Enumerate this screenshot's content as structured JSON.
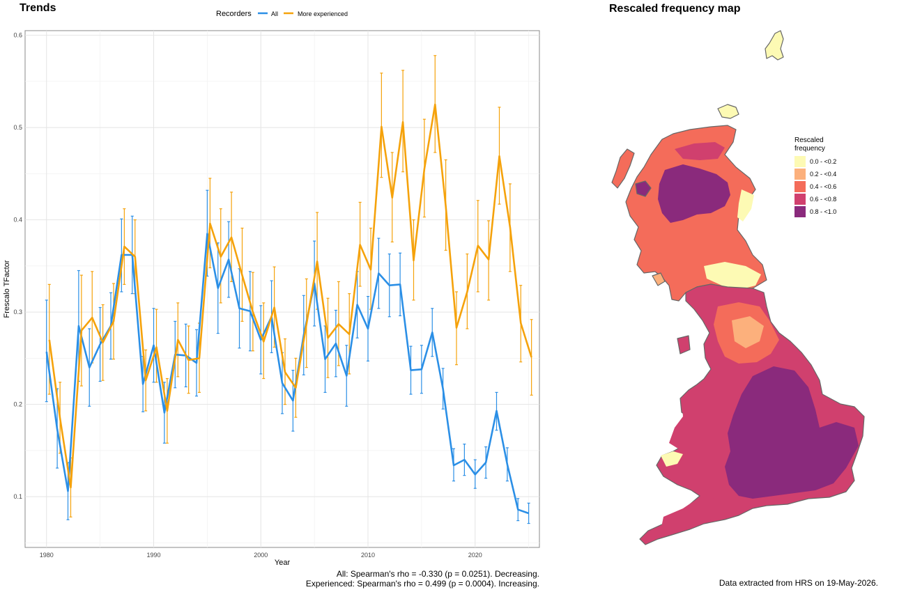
{
  "trends": {
    "title": "Trends",
    "legend_title": "Recorders",
    "stats_all": "All: Spearman's rho = -0.330 (p = 0.0251). Decreasing.",
    "stats_experienced": "Experienced: Spearman's rho = 0.499 (p = 0.0004). Increasing."
  },
  "chart_data": {
    "type": "line",
    "title": "Trends",
    "xlabel": "Year",
    "ylabel": "Frescalo TFactor",
    "xlim": [
      1978,
      2026
    ],
    "ylim": [
      0.045,
      0.605
    ],
    "x_ticks": [
      1980,
      1990,
      2000,
      2010,
      2020
    ],
    "y_ticks": [
      0.1,
      0.2,
      0.3,
      0.4,
      0.5,
      0.6
    ],
    "grid": true,
    "legend_position": "top",
    "series": [
      {
        "name": "All",
        "color": "#2b8fe6",
        "x": [
          1980,
          1981,
          1982,
          1983,
          1984,
          1985,
          1986,
          1987,
          1988,
          1989,
          1990,
          1991,
          1992,
          1993,
          1994,
          1995,
          1996,
          1997,
          1998,
          1999,
          2000,
          2001,
          2002,
          2003,
          2004,
          2005,
          2006,
          2007,
          2008,
          2009,
          2010,
          2011,
          2012,
          2013,
          2014,
          2015,
          2016,
          2017,
          2018,
          2019,
          2020,
          2021,
          2022,
          2023,
          2024,
          2025
        ],
        "y": [
          0.257,
          0.173,
          0.106,
          0.285,
          0.24,
          0.265,
          0.285,
          0.362,
          0.362,
          0.222,
          0.264,
          0.191,
          0.254,
          0.253,
          0.245,
          0.385,
          0.326,
          0.357,
          0.304,
          0.301,
          0.27,
          0.295,
          0.223,
          0.204,
          0.275,
          0.331,
          0.249,
          0.266,
          0.231,
          0.308,
          0.282,
          0.342,
          0.329,
          0.33,
          0.237,
          0.238,
          0.278,
          0.217,
          0.134,
          0.14,
          0.124,
          0.137,
          0.193,
          0.135,
          0.086,
          0.082
        ],
        "lower": [
          0.203,
          0.131,
          0.075,
          0.225,
          0.198,
          0.225,
          0.249,
          0.322,
          0.32,
          0.192,
          0.224,
          0.158,
          0.218,
          0.219,
          0.209,
          0.339,
          0.277,
          0.316,
          0.261,
          0.258,
          0.233,
          0.256,
          0.19,
          0.171,
          0.232,
          0.285,
          0.213,
          0.23,
          0.198,
          0.272,
          0.247,
          0.304,
          0.295,
          0.296,
          0.211,
          0.212,
          0.252,
          0.195,
          0.117,
          0.123,
          0.109,
          0.12,
          0.172,
          0.117,
          0.074,
          0.071
        ],
        "upper": [
          0.313,
          0.217,
          0.137,
          0.345,
          0.282,
          0.305,
          0.321,
          0.401,
          0.404,
          0.252,
          0.304,
          0.224,
          0.29,
          0.287,
          0.281,
          0.432,
          0.375,
          0.398,
          0.347,
          0.344,
          0.307,
          0.334,
          0.256,
          0.237,
          0.318,
          0.377,
          0.285,
          0.302,
          0.264,
          0.344,
          0.317,
          0.38,
          0.363,
          0.364,
          0.263,
          0.264,
          0.304,
          0.239,
          0.152,
          0.157,
          0.14,
          0.154,
          0.213,
          0.153,
          0.098,
          0.093
        ]
      },
      {
        "name": "More experienced",
        "color": "#f5a20b",
        "x": [
          1980,
          1981,
          1982,
          1983,
          1984,
          1985,
          1986,
          1987,
          1988,
          1989,
          1990,
          1991,
          1992,
          1993,
          1994,
          1995,
          1996,
          1997,
          1998,
          1999,
          2000,
          2001,
          2002,
          2003,
          2004,
          2005,
          2006,
          2007,
          2008,
          2009,
          2010,
          2011,
          2012,
          2013,
          2014,
          2015,
          2016,
          2017,
          2018,
          2019,
          2020,
          2021,
          2022,
          2023,
          2024,
          2025
        ],
        "y": [
          0.27,
          0.185,
          0.11,
          0.28,
          0.294,
          0.267,
          0.29,
          0.371,
          0.36,
          0.226,
          0.262,
          0.193,
          0.27,
          0.248,
          0.25,
          0.396,
          0.36,
          0.381,
          0.34,
          0.3,
          0.268,
          0.305,
          0.235,
          0.218,
          0.287,
          0.355,
          0.272,
          0.287,
          0.276,
          0.373,
          0.346,
          0.501,
          0.424,
          0.506,
          0.356,
          0.455,
          0.525,
          0.415,
          0.283,
          0.322,
          0.372,
          0.357,
          0.469,
          0.392,
          0.288,
          0.251
        ],
        "lower": [
          0.211,
          0.147,
          0.078,
          0.22,
          0.245,
          0.226,
          0.249,
          0.33,
          0.32,
          0.193,
          0.224,
          0.158,
          0.23,
          0.212,
          0.213,
          0.348,
          0.31,
          0.333,
          0.29,
          0.258,
          0.228,
          0.262,
          0.2,
          0.186,
          0.24,
          0.303,
          0.229,
          0.242,
          0.233,
          0.328,
          0.303,
          0.446,
          0.376,
          0.452,
          0.313,
          0.403,
          0.473,
          0.367,
          0.243,
          0.282,
          0.322,
          0.313,
          0.417,
          0.344,
          0.246,
          0.21
        ],
        "upper": [
          0.33,
          0.224,
          0.142,
          0.34,
          0.344,
          0.308,
          0.331,
          0.412,
          0.4,
          0.259,
          0.303,
          0.228,
          0.31,
          0.285,
          0.288,
          0.445,
          0.412,
          0.43,
          0.391,
          0.343,
          0.31,
          0.349,
          0.271,
          0.25,
          0.336,
          0.408,
          0.315,
          0.333,
          0.32,
          0.419,
          0.391,
          0.559,
          0.473,
          0.562,
          0.4,
          0.509,
          0.578,
          0.465,
          0.322,
          0.363,
          0.421,
          0.399,
          0.522,
          0.439,
          0.329,
          0.292
        ]
      }
    ]
  },
  "map": {
    "title": "Rescaled frequency map",
    "legend_title_line1": "Rescaled",
    "legend_title_line2": "frequency",
    "legend": [
      {
        "label": "0.0 - <0.2",
        "color": "#fdfab4"
      },
      {
        "label": "0.2 - <0.4",
        "color": "#fcb07c"
      },
      {
        "label": "0.4 - <0.6",
        "color": "#f46c5a"
      },
      {
        "label": "0.6 - <0.8",
        "color": "#d0406e"
      },
      {
        "label": "0.8 - <1.0",
        "color": "#8a2a7c"
      }
    ],
    "extract_note": "Data extracted from HRS on 19-May-2026."
  }
}
